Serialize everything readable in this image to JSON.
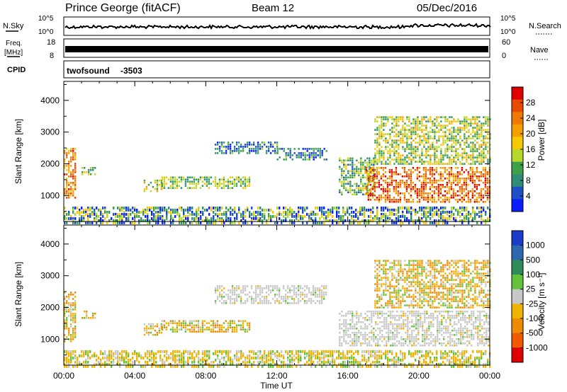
{
  "header": {
    "station": "Prince George (fitACF)",
    "beam": "Beam 12",
    "date": "05/Dec/2016"
  },
  "panels": {
    "nsky_label": "N.Sky",
    "nsky_ticks": [
      "10^5",
      "10^0"
    ],
    "nsearch_label": "N.Search",
    "nsearch_ticks": [
      "10^5",
      "10^0"
    ],
    "freq_label": "Freq.",
    "freq_unit": "[MHz]",
    "freq_ticks": [
      "18",
      "8"
    ],
    "nave_label": "Nave",
    "nave_ticks": [
      "60",
      "0"
    ],
    "cpid_label": "CPID",
    "cpid_value": "twofsound",
    "cpid_number": "-3503"
  },
  "chart_data": [
    {
      "type": "heatmap",
      "name": "power",
      "ylabel": "Slant Range [km]",
      "ylim": [
        180,
        4600
      ],
      "yticks": [
        1000,
        2000,
        3000,
        4000
      ],
      "xlim": [
        0,
        24
      ],
      "colorbar": {
        "label": "Power [dB]",
        "ticks": [
          "4",
          "8",
          "12",
          "16",
          "20",
          "24",
          "28"
        ],
        "colors": [
          "#0a1eff",
          "#1e4fc8",
          "#2f8f76",
          "#3fa04a",
          "#b5d82a",
          "#f5c800",
          "#f5a000",
          "#f07a00",
          "#e84a00",
          "#e00000"
        ]
      },
      "echo_regions": [
        {
          "t": [
            0.0,
            0.6
          ],
          "r": [
            900,
            2500
          ],
          "level": 0.75
        },
        {
          "t": [
            1.0,
            1.8
          ],
          "r": [
            1650,
            1900
          ],
          "level": 0.35
        },
        {
          "t": [
            4.5,
            5.5
          ],
          "r": [
            1150,
            1500
          ],
          "level": 0.45
        },
        {
          "t": [
            5.5,
            10.5
          ],
          "r": [
            1200,
            1600
          ],
          "level": 0.4
        },
        {
          "t": [
            8.5,
            12.0
          ],
          "r": [
            2300,
            2700
          ],
          "level": 0.2
        },
        {
          "t": [
            12.0,
            14.8
          ],
          "r": [
            2100,
            2500
          ],
          "level": 0.2
        },
        {
          "t": [
            15.5,
            17.5
          ],
          "r": [
            1000,
            2200
          ],
          "level": 0.35
        },
        {
          "t": [
            17.0,
            24.0
          ],
          "r": [
            800,
            1900
          ],
          "level": 0.8
        },
        {
          "t": [
            17.5,
            24.0
          ],
          "r": [
            2000,
            3500
          ],
          "level": 0.45
        },
        {
          "t": [
            0.0,
            24.0
          ],
          "r": [
            180,
            650
          ],
          "level": 0.3
        }
      ]
    },
    {
      "type": "heatmap",
      "name": "velocity",
      "ylabel": "Slant Range [km]",
      "xlabel": "Time UT",
      "ylim": [
        180,
        4600
      ],
      "yticks": [
        1000,
        2000,
        3000,
        4000
      ],
      "xlim": [
        0,
        24
      ],
      "xticks": [
        "00:00",
        "04:00",
        "08:00",
        "12:00",
        "16:00",
        "20:00",
        "00:00"
      ],
      "colorbar": {
        "label": "Velocity [m s⁻¹]",
        "ticks": [
          "1000",
          "500",
          "100",
          "25",
          "-25",
          "-100",
          "-500",
          "-1000"
        ],
        "colors": [
          "#1a3cc8",
          "#2f68b0",
          "#2f8a5a",
          "#62c23a",
          "#c8c8c8",
          "#f0b400",
          "#f08a00",
          "#f05a00",
          "#e00000"
        ]
      },
      "echo_regions": [
        {
          "t": [
            0.0,
            0.6
          ],
          "r": [
            900,
            2500
          ],
          "level": 0.7
        },
        {
          "t": [
            1.0,
            1.8
          ],
          "r": [
            1650,
            1900
          ],
          "level": 0.7
        },
        {
          "t": [
            4.5,
            5.5
          ],
          "r": [
            1150,
            1500
          ],
          "level": 0.7
        },
        {
          "t": [
            5.5,
            10.5
          ],
          "r": [
            1200,
            1600
          ],
          "level": 0.7
        },
        {
          "t": [
            8.5,
            14.8
          ],
          "r": [
            2100,
            2700
          ],
          "level": 0.5
        },
        {
          "t": [
            15.5,
            24.0
          ],
          "r": [
            800,
            1900
          ],
          "level": 0.5
        },
        {
          "t": [
            17.5,
            24.0
          ],
          "r": [
            2000,
            3500
          ],
          "level": 0.7
        },
        {
          "t": [
            0.0,
            24.0
          ],
          "r": [
            180,
            650
          ],
          "level": 0.6
        }
      ]
    }
  ]
}
